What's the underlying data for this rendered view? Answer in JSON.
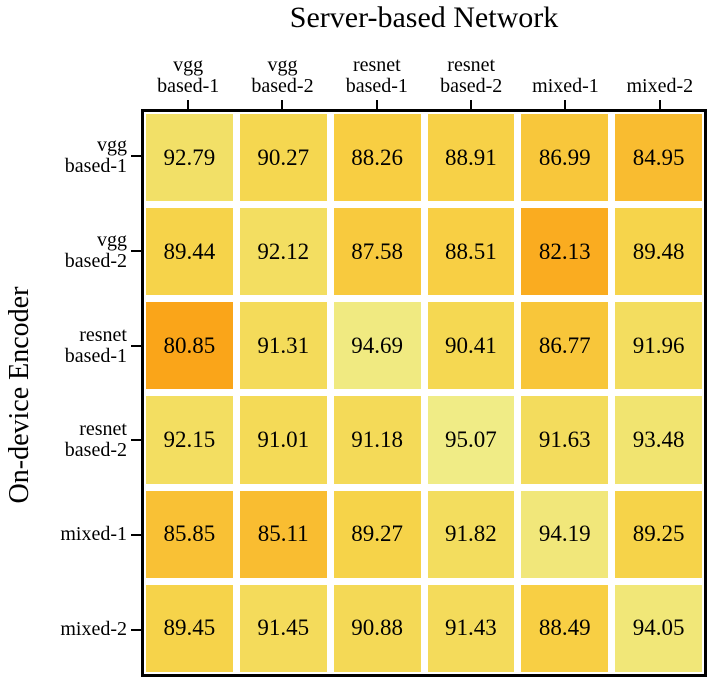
{
  "figure": {
    "title": "Server-based Network",
    "ylabel": "On-device Encoder"
  },
  "chart_data": {
    "type": "heatmap",
    "title": "Server-based Network",
    "xlabel": "",
    "ylabel": "On-device Encoder",
    "x_categories": [
      "vgg\nbased-1",
      "vgg\nbased-2",
      "resnet\nbased-1",
      "resnet\nbased-2",
      "mixed-1",
      "mixed-2"
    ],
    "y_categories": [
      "vgg\nbased-1",
      "vgg\nbased-2",
      "resnet\nbased-1",
      "resnet\nbased-2",
      "mixed-1",
      "mixed-2"
    ],
    "values": [
      [
        92.79,
        90.27,
        88.26,
        88.91,
        86.99,
        84.95
      ],
      [
        89.44,
        92.12,
        87.58,
        88.51,
        82.13,
        89.48
      ],
      [
        80.85,
        91.31,
        94.69,
        90.41,
        86.77,
        91.96
      ],
      [
        92.15,
        91.01,
        91.18,
        95.07,
        91.63,
        93.48
      ],
      [
        85.85,
        85.11,
        89.27,
        91.82,
        94.19,
        89.25
      ],
      [
        89.45,
        91.45,
        90.88,
        91.43,
        88.49,
        94.05
      ]
    ],
    "value_decimals": 2,
    "color_scale": {
      "vmin": 80.85,
      "vmax": 95.07,
      "stops": [
        {
          "t": 0.0,
          "color": "#FAA519"
        },
        {
          "t": 0.52,
          "color": "#F8CE42"
        },
        {
          "t": 0.66,
          "color": "#F5D750"
        },
        {
          "t": 0.84,
          "color": "#F2E067"
        },
        {
          "t": 1.0,
          "color": "#F0EC86"
        }
      ],
      "cell_text_color": "#000000"
    },
    "grid_gap_color": "#FFFFFF",
    "border_color": "#000000",
    "legend": "none",
    "ticks": "top-and-left"
  }
}
